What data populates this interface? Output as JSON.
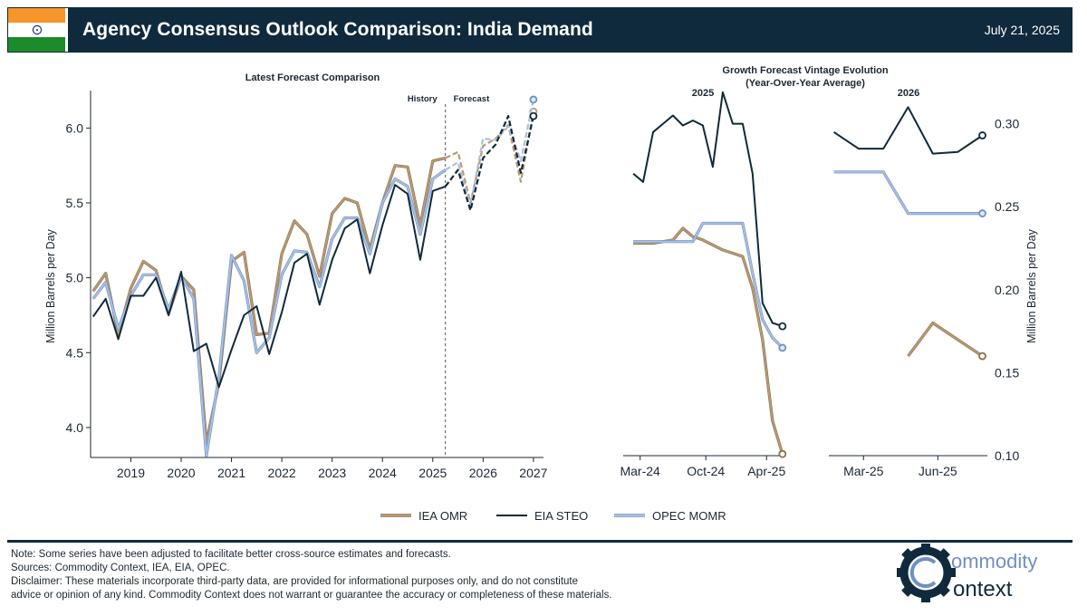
{
  "header": {
    "title": "Agency Consensus Outlook Comparison: India Demand",
    "date": "July 21, 2025",
    "flag": "india-flag"
  },
  "footer": {
    "note": "Note: Some series have been adjusted to facilitate better cross-source estimates and forecasts.",
    "sources": "Sources: Commodity Context, IEA, EIA, OPEC.",
    "disclaimer_1": "Disclaimer: These materials incorporate third-party data, are provided for informational purposes only, and do not constitute",
    "disclaimer_2": "advice or opinion of any kind. Commodity Context does not warrant or guarantee the accuracy or completeness of these materials.",
    "logo_line1": "ommodity",
    "logo_line2": "ontext"
  },
  "colors": {
    "iea": "#b89a74",
    "eia": "#0f2a3c",
    "opec": "#a9bfe0",
    "header": "#0f2a3c"
  },
  "legend": [
    "IEA OMR",
    "EIA STEO",
    "OPEC MOMR"
  ],
  "chart_data": [
    {
      "type": "line",
      "title": "Latest Forecast Comparison",
      "ylabel": "Million Barrels per Day",
      "ylim": [
        3.8,
        6.25
      ],
      "yticks": [
        "4.0",
        "4.5",
        "5.0",
        "5.5",
        "6.0"
      ],
      "yticks_values": [
        4.0,
        4.5,
        5.0,
        5.5,
        6.0
      ],
      "xlim": [
        2018.2,
        2027.2
      ],
      "xticks": [
        "2019",
        "2020",
        "2021",
        "2022",
        "2023",
        "2024",
        "2025",
        "2026",
        "2027"
      ],
      "xticks_values": [
        2019,
        2020,
        2021,
        2022,
        2023,
        2024,
        2025,
        2026,
        2027
      ],
      "divider": 2025.25,
      "history_label": "History",
      "forecast_label": "Forecast",
      "x": [
        2018.25,
        2018.5,
        2018.75,
        2019.0,
        2019.25,
        2019.5,
        2019.75,
        2020.0,
        2020.25,
        2020.5,
        2020.75,
        2021.0,
        2021.25,
        2021.5,
        2021.75,
        2022.0,
        2022.25,
        2022.5,
        2022.75,
        2023.0,
        2023.25,
        2023.5,
        2023.75,
        2024.0,
        2024.25,
        2024.5,
        2024.75,
        2025.0,
        2025.25,
        2025.5,
        2025.75,
        2026.0,
        2026.25,
        2026.5,
        2026.75,
        2027.0
      ],
      "series": [
        {
          "name": "IEA OMR",
          "values": [
            4.91,
            5.03,
            4.62,
            4.93,
            5.11,
            5.05,
            4.76,
            5.01,
            4.92,
            3.9,
            4.3,
            5.11,
            5.17,
            4.62,
            4.63,
            5.16,
            5.38,
            5.29,
            5.01,
            5.43,
            5.53,
            5.5,
            5.19,
            5.5,
            5.75,
            5.74,
            5.35,
            5.78,
            5.8,
            5.84,
            5.5,
            5.88,
            5.93,
            6.02,
            5.64,
            6.11
          ]
        },
        {
          "name": "EIA STEO",
          "values": [
            4.74,
            4.86,
            4.59,
            4.88,
            4.88,
            5.0,
            4.75,
            5.04,
            4.51,
            4.56,
            4.27,
            4.52,
            4.75,
            4.81,
            4.49,
            4.77,
            5.1,
            5.16,
            4.82,
            5.12,
            5.33,
            5.39,
            5.03,
            5.35,
            5.62,
            5.56,
            5.12,
            5.58,
            5.61,
            5.72,
            5.45,
            5.8,
            5.89,
            6.08,
            5.7,
            6.08
          ]
        },
        {
          "name": "OPEC MOMR",
          "values": [
            4.86,
            4.97,
            4.66,
            4.88,
            5.02,
            5.02,
            4.79,
            5.01,
            4.86,
            3.81,
            4.34,
            5.15,
            4.98,
            4.5,
            4.6,
            5.02,
            5.18,
            5.17,
            4.94,
            5.26,
            5.4,
            5.4,
            5.16,
            5.5,
            5.66,
            5.61,
            5.29,
            5.66,
            5.72,
            5.77,
            5.48,
            5.93,
            5.92,
            6.01,
            5.78,
            6.19
          ]
        }
      ]
    },
    {
      "type": "line",
      "title": "Growth Forecast Vintage Evolution",
      "subtitle": "(Year-Over-Year Average)",
      "ylabel": "Million Barrels per Day",
      "ylim": [
        0.1,
        0.32
      ],
      "yticks": [
        "0.10",
        "0.15",
        "0.20",
        "0.25",
        "0.30"
      ],
      "yticks_values": [
        0.1,
        0.15,
        0.2,
        0.25,
        0.3
      ],
      "panels": [
        {
          "label": "2025",
          "xlim": [
            -1.0,
            15.2
          ],
          "xticks": [
            "Mar-24",
            "Oct-24",
            "Apr-25"
          ],
          "xticks_values": [
            0.7,
            7.3,
            13.4
          ],
          "series": [
            {
              "name": "IEA OMR",
              "x": [
                0,
                1,
                2,
                3,
                4,
                5,
                6,
                7,
                8,
                9,
                10,
                11,
                12,
                13,
                14,
                15
              ],
              "values": [
                0.228,
                0.228,
                0.228,
                0.229,
                0.23,
                0.237,
                0.232,
                0.23,
                0.227,
                0.224,
                0.222,
                0.22,
                0.201,
                0.17,
                0.121,
                0.101
              ]
            },
            {
              "name": "EIA STEO",
              "x": [
                0,
                1,
                2,
                3,
                4,
                5,
                6,
                7,
                8,
                9,
                10,
                11,
                12,
                13,
                14,
                15
              ],
              "values": [
                0.27,
                0.265,
                0.295,
                0.3,
                0.305,
                0.299,
                0.302,
                0.299,
                0.274,
                0.319,
                0.3,
                0.3,
                0.27,
                0.192,
                0.18,
                0.178
              ]
            },
            {
              "name": "OPEC MOMR",
              "x": [
                0,
                1,
                2,
                3,
                4,
                5,
                6,
                7,
                8,
                9,
                10,
                11,
                12,
                13,
                14,
                15
              ],
              "values": [
                0.229,
                0.229,
                0.229,
                0.229,
                0.229,
                0.229,
                0.229,
                0.24,
                0.24,
                0.24,
                0.24,
                0.24,
                0.21,
                0.182,
                0.171,
                0.165
              ]
            }
          ]
        },
        {
          "label": "2026",
          "xlim": [
            -0.2,
            6.2
          ],
          "xticks": [
            "Mar-25",
            "Jun-25"
          ],
          "xticks_values": [
            1.2,
            4.2
          ],
          "series": [
            {
              "name": "IEA OMR",
              "x": [
                3,
                4,
                6
              ],
              "values": [
                0.16,
                0.18,
                0.16
              ]
            },
            {
              "name": "EIA STEO",
              "x": [
                0,
                1,
                2,
                3,
                4,
                5,
                6
              ],
              "values": [
                0.295,
                0.285,
                0.285,
                0.31,
                0.282,
                0.283,
                0.293
              ]
            },
            {
              "name": "OPEC MOMR",
              "x": [
                0,
                1,
                2,
                3,
                4,
                5,
                6
              ],
              "values": [
                0.271,
                0.271,
                0.271,
                0.246,
                0.246,
                0.246,
                0.246
              ]
            }
          ]
        }
      ]
    }
  ]
}
